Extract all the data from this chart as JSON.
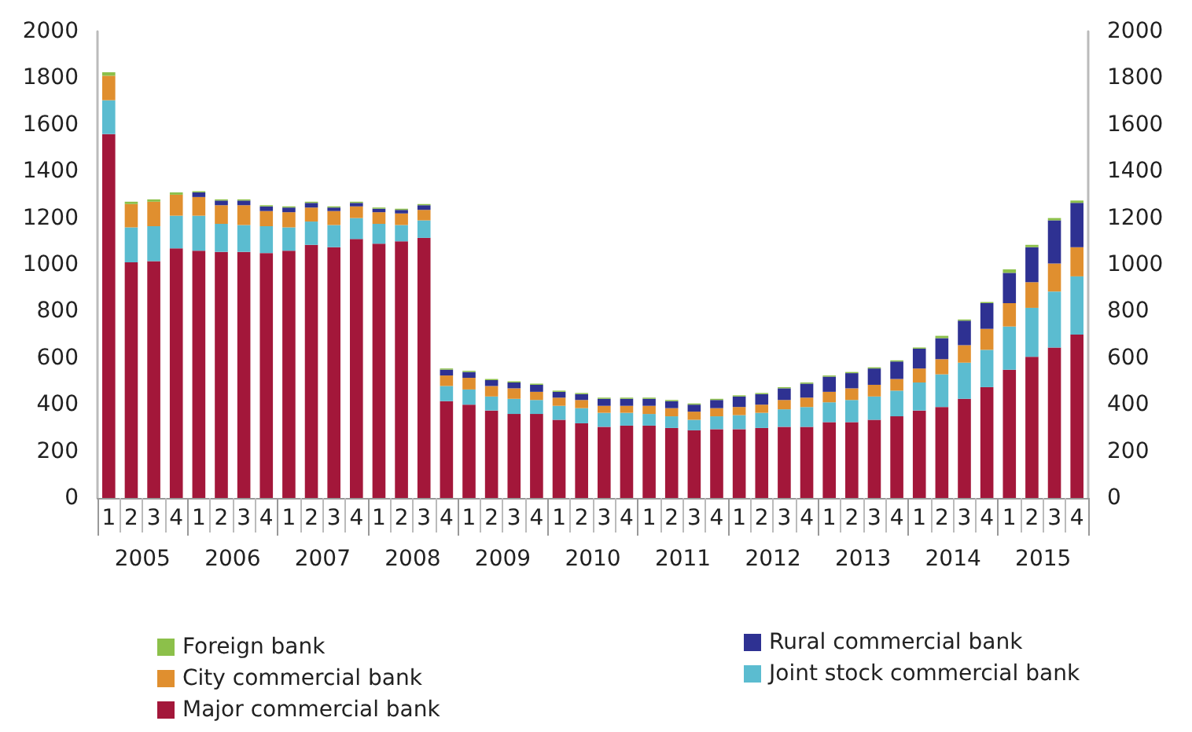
{
  "chart_data": {
    "type": "bar",
    "stacked": true,
    "legend": "bottom",
    "categories": [
      "1",
      "2",
      "3",
      "4",
      "1",
      "2",
      "3",
      "4",
      "1",
      "2",
      "3",
      "4",
      "1",
      "2",
      "3",
      "4",
      "1",
      "2",
      "3",
      "4",
      "1",
      "2",
      "3",
      "4",
      "1",
      "2",
      "3",
      "4",
      "1",
      "2",
      "3",
      "4",
      "1",
      "2",
      "3",
      "4",
      "1",
      "2",
      "3",
      "4",
      "1",
      "2",
      "3",
      "4"
    ],
    "annotations": [
      "2005",
      "2006",
      "2007",
      "2008",
      "2009",
      "2010",
      "2011",
      "2012",
      "2013",
      "2014",
      "2015"
    ],
    "ylim": [
      0,
      2000
    ],
    "yticks": [
      0,
      200,
      400,
      600,
      800,
      1000,
      1200,
      1400,
      1600,
      1800,
      2000
    ],
    "y2lim": [
      0,
      2000
    ],
    "y2ticks": [
      0,
      200,
      400,
      600,
      800,
      1000,
      1200,
      1400,
      1600,
      1800,
      2000
    ],
    "series": [
      {
        "name": "Major commercial bank",
        "color": "#a3173a",
        "values": [
          1560,
          1010,
          1015,
          1070,
          1060,
          1055,
          1055,
          1050,
          1060,
          1085,
          1075,
          1110,
          1090,
          1100,
          1115,
          415,
          400,
          375,
          360,
          360,
          335,
          320,
          305,
          310,
          310,
          300,
          290,
          295,
          295,
          300,
          305,
          305,
          325,
          325,
          335,
          350,
          375,
          390,
          425,
          475,
          550,
          605,
          645,
          700
        ]
      },
      {
        "name": "Joint stock commercial bank",
        "color": "#5bbcd0",
        "values": [
          145,
          150,
          150,
          140,
          150,
          120,
          115,
          115,
          100,
          100,
          95,
          90,
          85,
          70,
          75,
          65,
          65,
          60,
          65,
          60,
          60,
          65,
          60,
          55,
          50,
          50,
          45,
          55,
          60,
          65,
          75,
          85,
          85,
          95,
          100,
          110,
          120,
          140,
          155,
          160,
          185,
          210,
          240,
          250
        ]
      },
      {
        "name": "City commercial bank",
        "color": "#e08f2f",
        "values": [
          105,
          100,
          105,
          90,
          80,
          80,
          85,
          65,
          65,
          60,
          60,
          50,
          50,
          50,
          45,
          45,
          50,
          45,
          45,
          35,
          35,
          35,
          30,
          30,
          35,
          35,
          35,
          35,
          35,
          35,
          40,
          40,
          45,
          50,
          50,
          50,
          60,
          65,
          75,
          90,
          100,
          110,
          120,
          125
        ]
      },
      {
        "name": "Rural commercial bank",
        "color": "#2e3192",
        "values": [
          0,
          0,
          0,
          0,
          20,
          20,
          20,
          20,
          20,
          20,
          15,
          15,
          15,
          15,
          20,
          25,
          25,
          25,
          25,
          30,
          25,
          25,
          30,
          30,
          30,
          30,
          30,
          35,
          45,
          45,
          50,
          60,
          65,
          65,
          70,
          75,
          85,
          90,
          105,
          110,
          130,
          150,
          185,
          190
        ]
      },
      {
        "name": "Foreign bank",
        "color": "#8cc04a",
        "values": [
          15,
          10,
          10,
          10,
          5,
          5,
          5,
          5,
          5,
          5,
          5,
          5,
          5,
          5,
          5,
          5,
          5,
          5,
          5,
          5,
          5,
          5,
          5,
          5,
          5,
          5,
          5,
          5,
          5,
          5,
          5,
          5,
          5,
          5,
          5,
          5,
          5,
          10,
          5,
          5,
          15,
          10,
          10,
          10
        ]
      }
    ]
  }
}
